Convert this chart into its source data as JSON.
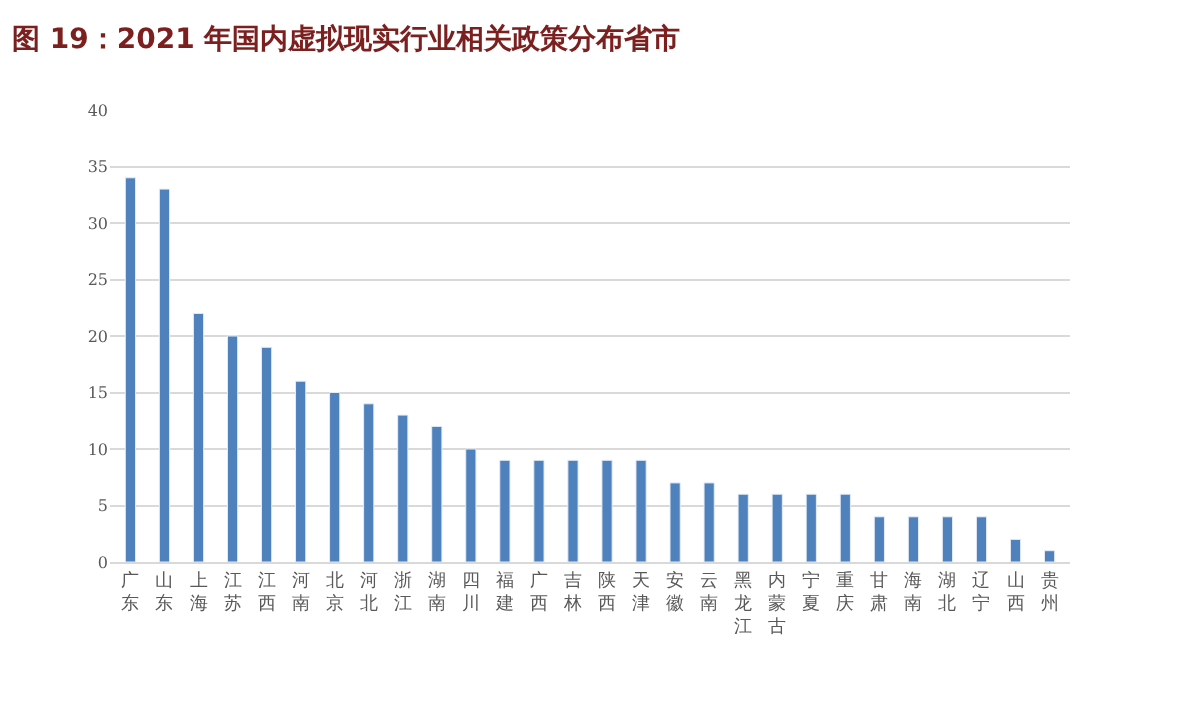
{
  "chart_data": {
    "type": "bar",
    "title": "图 19：2021 年国内虚拟现实行业相关政策分布省市",
    "categories": [
      "广东",
      "山东",
      "上海",
      "江苏",
      "江西",
      "河南",
      "北京",
      "河北",
      "浙江",
      "湖南",
      "四川",
      "福建",
      "广西",
      "吉林",
      "陕西",
      "天津",
      "安徽",
      "云南",
      "黑龙江",
      "内蒙古",
      "宁夏",
      "重庆",
      "甘肃",
      "海南",
      "湖北",
      "辽宁",
      "山西",
      "贵州"
    ],
    "values": [
      34,
      33,
      22,
      20,
      19,
      16,
      15,
      14,
      13,
      12,
      10,
      9,
      9,
      9,
      9,
      9,
      7,
      7,
      6,
      6,
      6,
      6,
      4,
      4,
      4,
      4,
      2,
      1
    ],
    "color": "#4f81bd",
    "ylim": [
      0,
      40
    ],
    "yticks": [
      0,
      5,
      10,
      15,
      20,
      25,
      30,
      35,
      40
    ],
    "grid": "y",
    "legend": false
  }
}
